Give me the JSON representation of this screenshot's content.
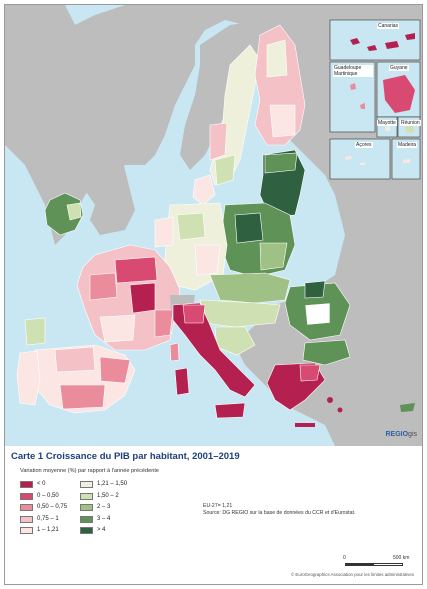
{
  "map": {
    "title": "Carte 1 Croissance du PIB par habitant, 2001–2019",
    "legend_heading": "Variation moyenne (%) par rapport à l'année précédente",
    "legend": [
      {
        "label": "< 0",
        "color": "#b4204f"
      },
      {
        "label": "0 – 0,50",
        "color": "#d94a72"
      },
      {
        "label": "0,50 – 0,75",
        "color": "#ea8c9c"
      },
      {
        "label": "0,75 – 1",
        "color": "#f4c1c6"
      },
      {
        "label": "1 – 1,21",
        "color": "#fbe6e4"
      },
      {
        "label": "1,21 – 1,50",
        "color": "#eef0dc"
      },
      {
        "label": "1,50 – 2",
        "color": "#cfe0b2"
      },
      {
        "label": "2 – 3",
        "color": "#9fc185"
      },
      {
        "label": "3 – 4",
        "color": "#5f9256"
      },
      {
        "label": "> 4",
        "color": "#2f6140"
      }
    ],
    "average": "EU-27= 1,21",
    "source": "Source: DG REGIO sur la base de données du CCR et d'Eurostat.",
    "insets": [
      "Canarias",
      "Guadeloupe Martinique",
      "Guyane",
      "Mayotte",
      "Réunion",
      "Açores",
      "Madeira"
    ],
    "brand_a": "REGIO",
    "brand_b": "gis",
    "scale_zero": "0",
    "scale_end": "500 km",
    "copyright": "© EuroGeographics Association pour les limites administratives"
  }
}
